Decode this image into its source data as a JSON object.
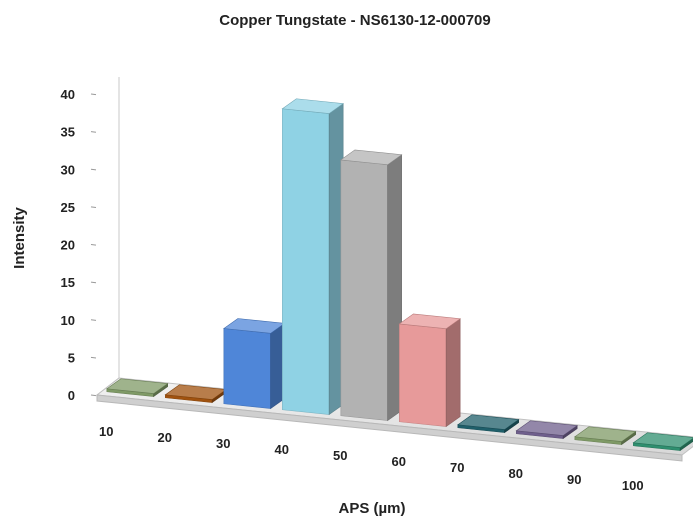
{
  "chart_data": {
    "type": "bar",
    "title": "Copper Tungstate - NS6130-12-000709",
    "xlabel": "APS (µm)",
    "ylabel": "Intensity",
    "categories": [
      "10",
      "20",
      "30",
      "40",
      "50",
      "60",
      "70",
      "80",
      "90",
      "100"
    ],
    "values": [
      0,
      0,
      10,
      40,
      34,
      13,
      0,
      0,
      0,
      0
    ],
    "ylim": [
      0,
      40
    ],
    "yticks": [
      "0",
      "5",
      "10",
      "15",
      "20",
      "25",
      "30",
      "35",
      "40"
    ],
    "grid": false,
    "legend": "none",
    "bar_colors": [
      "#7f9a66",
      "#a0520f",
      "#4f86d8",
      "#8fd2e4",
      "#b2b2b2",
      "#e79a9a",
      "#1f5f6a",
      "#6f5f8c",
      "#7f9a66",
      "#2f8f6f"
    ]
  }
}
